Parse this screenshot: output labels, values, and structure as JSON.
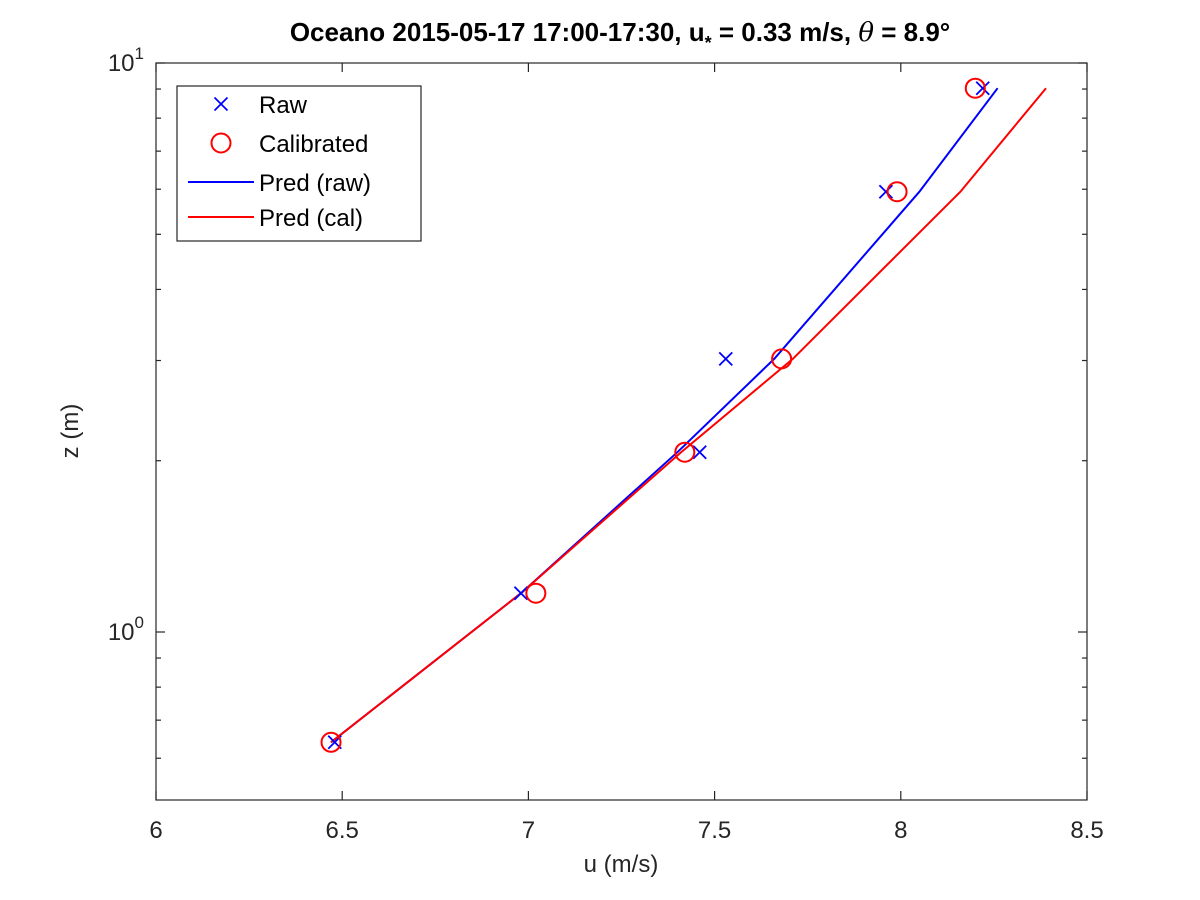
{
  "chart_data": {
    "type": "line",
    "title_parts": {
      "prefix": "Oceano 2015-05-17 17:00-17:30, u",
      "sub": "*",
      "middle": " = 0.33 m/s, ",
      "theta": "θ",
      "suffix": " = 8.9°"
    },
    "xlabel": "u (m/s)",
    "ylabel": "z (m)",
    "xlim": [
      6,
      8.5
    ],
    "ylim": [
      0.55,
      10
    ],
    "yscale": "log",
    "x_ticks": [
      6,
      6.5,
      7,
      7.5,
      8,
      8.5
    ],
    "x_tick_labels": [
      "6",
      "6.5",
      "7",
      "7.5",
      "8",
      "8.5"
    ],
    "y_major_ticks": [
      {
        "value": 1,
        "base": "10",
        "exp": "0"
      },
      {
        "value": 10,
        "base": "10",
        "exp": "1"
      }
    ],
    "y_minor_ticks": [
      0.6,
      0.7,
      0.8,
      0.9,
      2,
      3,
      4,
      5,
      6,
      7,
      8,
      9
    ],
    "grid": false,
    "legend_position": "top-left",
    "series": [
      {
        "name": "Raw",
        "kind": "marker-x",
        "color": "#0000ff",
        "x": [
          6.48,
          6.98,
          7.46,
          7.53,
          7.96,
          8.22
        ],
        "z": [
          0.64,
          1.17,
          2.07,
          3.02,
          5.94,
          9.03
        ]
      },
      {
        "name": "Calibrated",
        "kind": "marker-circle",
        "color": "#ff0000",
        "x": [
          6.47,
          7.02,
          7.42,
          7.68,
          7.99,
          8.2
        ],
        "z": [
          0.64,
          1.17,
          2.07,
          3.02,
          5.94,
          9.03
        ]
      },
      {
        "name": "Pred (raw)",
        "kind": "line",
        "color": "#0000ff",
        "x": [
          6.47,
          6.98,
          7.4,
          7.66,
          8.05,
          8.26
        ],
        "z": [
          0.64,
          1.17,
          2.07,
          3.02,
          5.94,
          9.03
        ]
      },
      {
        "name": "Pred (cal)",
        "kind": "line",
        "color": "#ff0000",
        "x": [
          6.47,
          6.98,
          7.41,
          7.71,
          8.16,
          8.39
        ],
        "z": [
          0.64,
          1.17,
          2.07,
          3.02,
          5.94,
          9.03
        ]
      }
    ]
  }
}
